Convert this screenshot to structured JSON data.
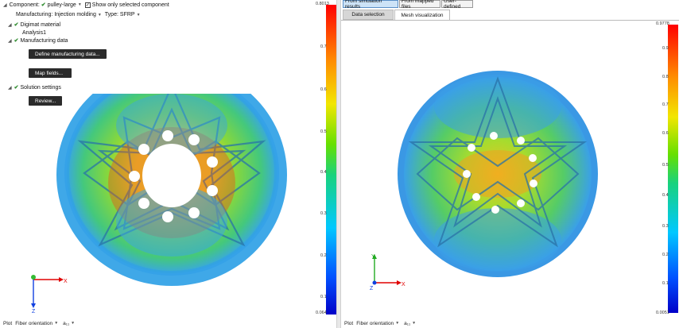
{
  "left": {
    "component_label": "Component:",
    "component_value": "pulley-large",
    "show_selected_label": "Show only selected component",
    "manufacturing_label": "Manufacturing:",
    "manufacturing_value": "Injection molding",
    "type_label": "Type:",
    "type_value": "SFRP",
    "tree": {
      "digimat_material": "Digimat material",
      "analysis": "Analysis1",
      "manufacturing_data": "Manufacturing data",
      "define_button": "Define manufacturing data...",
      "map_button": "Map fields...",
      "solution_settings": "Solution settings",
      "review_button": "Review..."
    },
    "axes": {
      "x": "X",
      "z": "Z"
    },
    "colorbar": {
      "max": "0.8013",
      "min": "0.064",
      "ticks": [
        "0.7",
        "0.6",
        "0.5",
        "0.4",
        "0.3",
        "0.2",
        "0.1"
      ]
    },
    "plot": {
      "label": "Plot",
      "value": "Fiber orientation",
      "component": "a₁₁"
    }
  },
  "right": {
    "source_tabs": [
      "From simulation results",
      "From mapped files",
      "User-defined"
    ],
    "sub_tabs": [
      "Data selection",
      "Mesh visualization"
    ],
    "axes": {
      "x": "X",
      "y": "Y",
      "z": "Z"
    },
    "colorbar": {
      "max": "0.9778",
      "min": "0.0051",
      "ticks": [
        "0.9",
        "0.8",
        "0.7",
        "0.6",
        "0.5",
        "0.4",
        "0.3",
        "0.2",
        "0.1"
      ]
    },
    "plot": {
      "label": "Plot",
      "value": "Fiber orientation",
      "component": "a₁₁"
    }
  },
  "colors": {
    "accent_check": "#2e8b2e",
    "active_tab": "#cde3f7",
    "button_dark": "#2b2b2b"
  }
}
